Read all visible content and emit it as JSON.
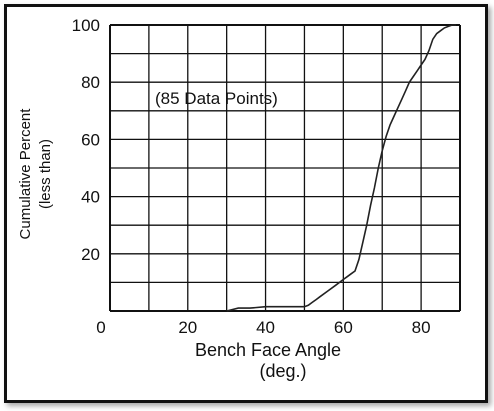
{
  "chart_data": {
    "type": "line",
    "title": "",
    "annotation": "(85 Data Points)",
    "xlabel_line1": "Bench Face Angle",
    "xlabel_line2": "(deg.)",
    "ylabel_line1": "Cumulative Percent",
    "ylabel_line2": "(less than)",
    "xlim": [
      0,
      90
    ],
    "ylim": [
      0,
      100
    ],
    "x_ticks": [
      0,
      20,
      40,
      60,
      80
    ],
    "y_ticks": [
      20,
      40,
      60,
      80,
      100
    ],
    "x_grid_step": 10,
    "y_grid_step": 10,
    "grid": true,
    "series": [
      {
        "x": [
          30,
          33,
          36,
          40,
          44,
          48,
          50,
          51,
          52,
          53,
          54,
          56,
          58,
          60,
          61,
          62,
          63,
          64,
          65,
          66,
          67,
          68,
          69,
          70,
          71,
          72,
          73,
          74,
          75,
          76,
          77,
          78,
          79,
          80,
          81,
          82,
          83,
          84,
          85,
          86,
          87,
          88,
          89
        ],
        "y": [
          0,
          1,
          1,
          1.5,
          1.5,
          1.5,
          1.5,
          2,
          3,
          4,
          5,
          7,
          9,
          11,
          12,
          13,
          14,
          18,
          24,
          30,
          37,
          43,
          50,
          56,
          61,
          65,
          68,
          71,
          74,
          77,
          80,
          82,
          84,
          86,
          88,
          91,
          95,
          97,
          98,
          99,
          99.5,
          100,
          100
        ]
      }
    ]
  },
  "colors": {
    "line": "#222222",
    "grid": "#111111",
    "frame": "#111111"
  }
}
